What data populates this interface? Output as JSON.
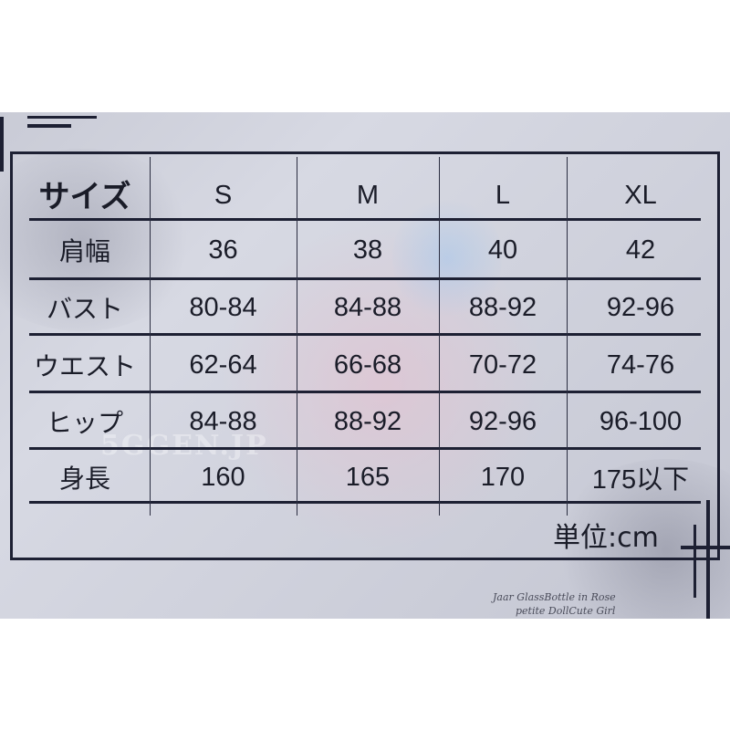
{
  "table": {
    "header": [
      "サイズ",
      "S",
      "M",
      "L",
      "XL"
    ],
    "rows": [
      [
        "肩幅",
        "36",
        "38",
        "40",
        "42"
      ],
      [
        "バスト",
        "80-84",
        "84-88",
        "88-92",
        "92-96"
      ],
      [
        "ウエスト",
        "62-64",
        "66-68",
        "70-72",
        "74-76"
      ],
      [
        "ヒップ",
        "84-88",
        "88-92",
        "92-96",
        "96-100"
      ],
      [
        "身長",
        "160",
        "165",
        "170",
        "175以下"
      ]
    ]
  },
  "unit_label": "単位:cm",
  "watermark": "5GGEN.JP",
  "colors": {
    "background": "#cfd1dc",
    "lines": "#1d2033",
    "text": "#1a1c28"
  }
}
